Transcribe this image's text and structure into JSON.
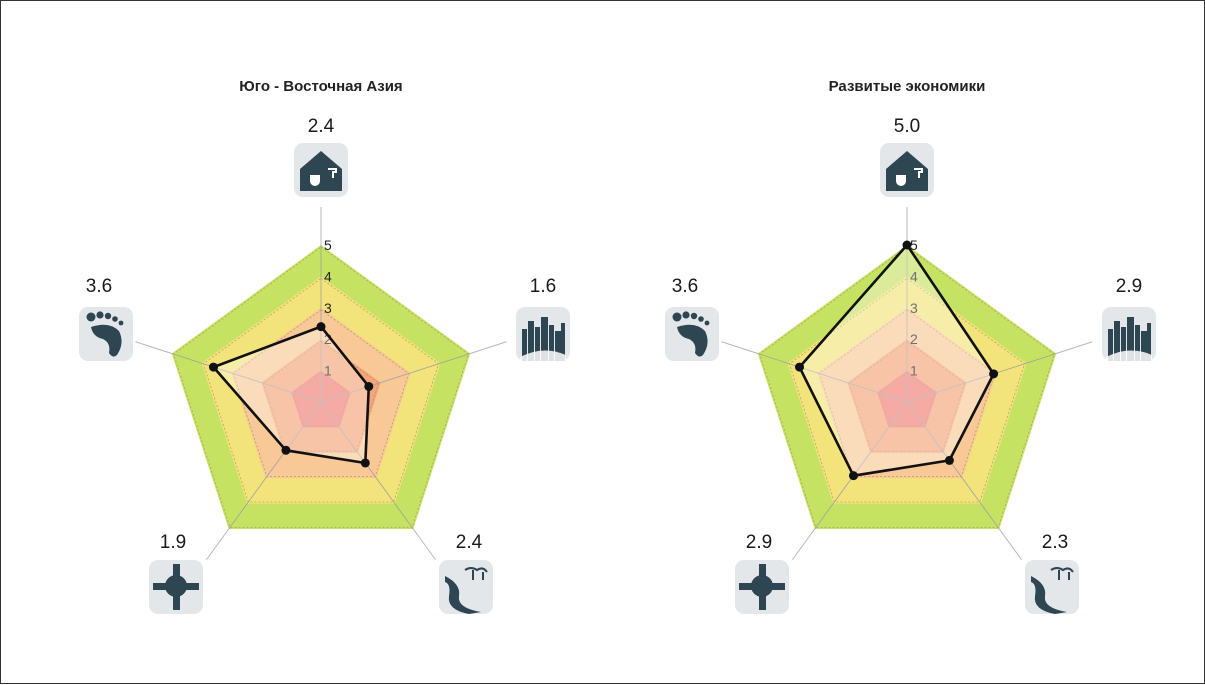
{
  "chart_data": [
    {
      "type": "radar",
      "title": "Юго - Восточная Азия",
      "axes": [
        "sanitation",
        "urban",
        "ecosystem",
        "cooperation",
        "footprint"
      ],
      "values": [
        2.4,
        1.6,
        2.4,
        1.9,
        3.6
      ],
      "value_labels": [
        "2.4",
        "1.6",
        "2.4",
        "1.9",
        "3.6"
      ],
      "rlim": [
        0,
        5
      ],
      "ticks": [
        "1",
        "2",
        "3",
        "4",
        "5"
      ]
    },
    {
      "type": "radar",
      "title": "Развитые экономики",
      "axes": [
        "sanitation",
        "urban",
        "ecosystem",
        "cooperation",
        "footprint"
      ],
      "values": [
        5.0,
        2.9,
        2.3,
        2.9,
        3.6
      ],
      "value_labels": [
        "5.0",
        "2.9",
        "2.3",
        "2.9",
        "3.6"
      ],
      "rlim": [
        0,
        5
      ],
      "ticks": [
        "1",
        "2",
        "3",
        "4",
        "5"
      ]
    }
  ],
  "icons": [
    "house-sanitation-icon",
    "city-skyline-icon",
    "river-landscape-icon",
    "joined-hands-icon",
    "footprint-icon"
  ],
  "colors": {
    "band1": "#f07e74",
    "band2": "#f5a57a",
    "band3": "#f8c896",
    "band4": "#f2e37a",
    "band5": "#c6e263",
    "overflow": "#f5a623",
    "series": "#111111",
    "icon_dark": "#2e4552",
    "icon_bg": "#e3e7ea"
  }
}
